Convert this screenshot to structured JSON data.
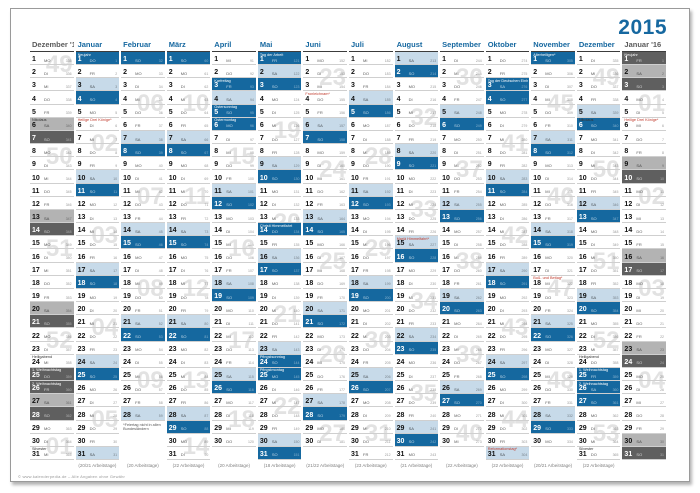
{
  "title": "2015",
  "copyright": "© www.kalenderpedia.de – Alle Angaben ohne Gewähr",
  "weekday_labels": [
    "MO",
    "DI",
    "MI",
    "DO",
    "FR",
    "SA",
    "SO"
  ],
  "colors": {
    "accent_blue": "#1668a0",
    "sunday_holiday_bg": "#15689f",
    "saturday_bg": "#c7dae9",
    "gray_saturday_bg": "#b3b3b3",
    "gray_sunday_bg": "#5f5f5f",
    "regional_holiday_text": "#c0392b",
    "week_watermark": "#e2e2e2"
  },
  "months": [
    {
      "label": "Dezember '14",
      "scheme": "gray",
      "days": 31,
      "start": 0,
      "doy_start": 335,
      "workdays": "",
      "holidays": [
        {
          "day": 6,
          "label": "Nikolaus",
          "type": "note"
        },
        {
          "day": 24,
          "label": "Heiligabend",
          "type": "note"
        },
        {
          "day": 25,
          "label": "1. Weihnachtstag",
          "type": "holiday"
        },
        {
          "day": 26,
          "label": "2. Weihnachtstag",
          "type": "holiday"
        },
        {
          "day": 31,
          "label": "Silvester",
          "type": "note"
        }
      ],
      "weeks": [
        {
          "n": "49",
          "day": 1
        },
        {
          "n": "50",
          "day": 8
        },
        {
          "n": "51",
          "day": 15
        },
        {
          "n": "52",
          "day": 22
        },
        {
          "n": "01",
          "day": 30
        }
      ]
    },
    {
      "label": "Januar",
      "scheme": "blue",
      "days": 31,
      "start": 3,
      "doy_start": 1,
      "workdays": "(20/21 Arbeitstage)",
      "holidays": [
        {
          "day": 1,
          "label": "Neujahr",
          "type": "holiday"
        },
        {
          "day": 6,
          "label": "Heilige Drei Könige*",
          "type": "regional"
        }
      ],
      "weeks": [
        {
          "n": "02",
          "day": 7
        },
        {
          "n": "03",
          "day": 14
        },
        {
          "n": "04",
          "day": 21
        },
        {
          "n": "05",
          "day": 28
        }
      ]
    },
    {
      "label": "Februar",
      "scheme": "blue",
      "days": 28,
      "start": 6,
      "doy_start": 32,
      "workdays": "(20 Arbeitstage)",
      "footnote": "*Feiertag nicht in allen Bundesländern",
      "holidays": [],
      "weeks": [
        {
          "n": "06",
          "day": 4
        },
        {
          "n": "07",
          "day": 11
        },
        {
          "n": "08",
          "day": 18
        },
        {
          "n": "09",
          "day": 25
        }
      ]
    },
    {
      "label": "März",
      "scheme": "blue",
      "days": 31,
      "start": 6,
      "doy_start": 60,
      "workdays": "(22 Arbeitstage)",
      "holidays": [],
      "weeks": [
        {
          "n": "10",
          "day": 4
        },
        {
          "n": "11",
          "day": 11
        },
        {
          "n": "12",
          "day": 18
        },
        {
          "n": "13",
          "day": 25
        },
        {
          "n": "14",
          "day": 30
        }
      ]
    },
    {
      "label": "April",
      "scheme": "blue",
      "days": 30,
      "start": 2,
      "doy_start": 91,
      "workdays": "(20 Arbeitstage)",
      "holidays": [
        {
          "day": 3,
          "label": "Karfreitag",
          "type": "holiday"
        },
        {
          "day": 5,
          "label": "Ostersonntag",
          "type": "holiday"
        },
        {
          "day": 6,
          "label": "Ostermontag",
          "type": "holiday"
        }
      ],
      "weeks": [
        {
          "n": "15",
          "day": 8
        },
        {
          "n": "16",
          "day": 15
        },
        {
          "n": "17",
          "day": 22
        },
        {
          "n": "18",
          "day": 28
        }
      ]
    },
    {
      "label": "Mai",
      "scheme": "blue",
      "days": 31,
      "start": 4,
      "doy_start": 121,
      "workdays": "(18 Arbeitstage)",
      "holidays": [
        {
          "day": 1,
          "label": "Tag der Arbeit",
          "type": "holiday"
        },
        {
          "day": 14,
          "label": "Christi Himmelfahrt",
          "type": "holiday"
        },
        {
          "day": 24,
          "label": "Pfingstsonntag",
          "type": "holiday"
        },
        {
          "day": 25,
          "label": "Pfingstmontag",
          "type": "holiday"
        }
      ],
      "weeks": [
        {
          "n": "19",
          "day": 6
        },
        {
          "n": "20",
          "day": 13
        },
        {
          "n": "21",
          "day": 20
        },
        {
          "n": "22",
          "day": 27
        }
      ]
    },
    {
      "label": "Juni",
      "scheme": "blue",
      "days": 30,
      "start": 0,
      "doy_start": 152,
      "workdays": "(21/22 Arbeitstage)",
      "holidays": [
        {
          "day": 4,
          "label": "Fronleichnam*",
          "type": "regional"
        }
      ],
      "weeks": [
        {
          "n": "23",
          "day": 2
        },
        {
          "n": "24",
          "day": 9
        },
        {
          "n": "25",
          "day": 16
        },
        {
          "n": "26",
          "day": 23
        },
        {
          "n": "27",
          "day": 29
        }
      ]
    },
    {
      "label": "Juli",
      "scheme": "blue",
      "days": 31,
      "start": 2,
      "doy_start": 182,
      "workdays": "(23 Arbeitstage)",
      "holidays": [],
      "weeks": [
        {
          "n": "28",
          "day": 8
        },
        {
          "n": "29",
          "day": 15
        },
        {
          "n": "30",
          "day": 22
        },
        {
          "n": "31",
          "day": 29
        }
      ]
    },
    {
      "label": "August",
      "scheme": "blue",
      "days": 31,
      "start": 5,
      "doy_start": 213,
      "workdays": "(21 Arbeitstage)",
      "holidays": [
        {
          "day": 15,
          "label": "Mariä Himmelfahrt*",
          "type": "regional"
        }
      ],
      "weeks": [
        {
          "n": "32",
          "day": 5
        },
        {
          "n": "33",
          "day": 12
        },
        {
          "n": "34",
          "day": 19
        },
        {
          "n": "35",
          "day": 26
        }
      ]
    },
    {
      "label": "September",
      "scheme": "blue",
      "days": 30,
      "start": 1,
      "doy_start": 244,
      "workdays": "(22 Arbeitstage)",
      "holidays": [],
      "weeks": [
        {
          "n": "36",
          "day": 2
        },
        {
          "n": "37",
          "day": 9
        },
        {
          "n": "38",
          "day": 16
        },
        {
          "n": "39",
          "day": 23
        },
        {
          "n": "40",
          "day": 29
        }
      ]
    },
    {
      "label": "Oktober",
      "scheme": "blue",
      "days": 31,
      "start": 3,
      "doy_start": 274,
      "workdays": "(22 Arbeitstage)",
      "holidays": [
        {
          "day": 3,
          "label": "Tag der Deutschen Einheit",
          "type": "holiday"
        },
        {
          "day": 31,
          "label": "Reformationstag*",
          "type": "regional"
        }
      ],
      "weeks": [
        {
          "n": "41",
          "day": 7
        },
        {
          "n": "42",
          "day": 14
        },
        {
          "n": "43",
          "day": 21
        },
        {
          "n": "44",
          "day": 28
        }
      ]
    },
    {
      "label": "November",
      "scheme": "blue",
      "days": 30,
      "start": 6,
      "doy_start": 305,
      "workdays": "(20/21 Arbeitstage)",
      "holidays": [
        {
          "day": 1,
          "label": "Allerheiligen*",
          "type": "holiday"
        },
        {
          "day": 18,
          "label": "Buß- und Bettag*",
          "type": "regional"
        }
      ],
      "weeks": [
        {
          "n": "45",
          "day": 4
        },
        {
          "n": "46",
          "day": 11
        },
        {
          "n": "47",
          "day": 18
        },
        {
          "n": "48",
          "day": 25
        }
      ]
    },
    {
      "label": "Dezember",
      "scheme": "blue",
      "days": 31,
      "start": 1,
      "doy_start": 335,
      "workdays": "(22 Arbeitstage)",
      "holidays": [
        {
          "day": 6,
          "label": "Nikolaus",
          "type": "note"
        },
        {
          "day": 24,
          "label": "Heiligabend",
          "type": "note"
        },
        {
          "day": 25,
          "label": "1. Weihnachtstag",
          "type": "holiday"
        },
        {
          "day": 26,
          "label": "2. Weihnachtstag",
          "type": "holiday"
        },
        {
          "day": 31,
          "label": "Silvester",
          "type": "note"
        }
      ],
      "weeks": [
        {
          "n": "49",
          "day": 2
        },
        {
          "n": "50",
          "day": 9
        },
        {
          "n": "51",
          "day": 16
        },
        {
          "n": "52",
          "day": 22
        },
        {
          "n": "53",
          "day": 29
        }
      ]
    },
    {
      "label": "Januar '16",
      "scheme": "gray",
      "days": 31,
      "start": 4,
      "doy_start": 1,
      "workdays": "",
      "holidays": [
        {
          "day": 1,
          "label": "Neujahr",
          "type": "holiday"
        },
        {
          "day": 6,
          "label": "Heilige Drei Könige*",
          "type": "regional"
        }
      ],
      "weeks": [
        {
          "n": "01",
          "day": 4
        },
        {
          "n": "02",
          "day": 11
        },
        {
          "n": "03",
          "day": 18
        },
        {
          "n": "04",
          "day": 25
        }
      ]
    }
  ]
}
